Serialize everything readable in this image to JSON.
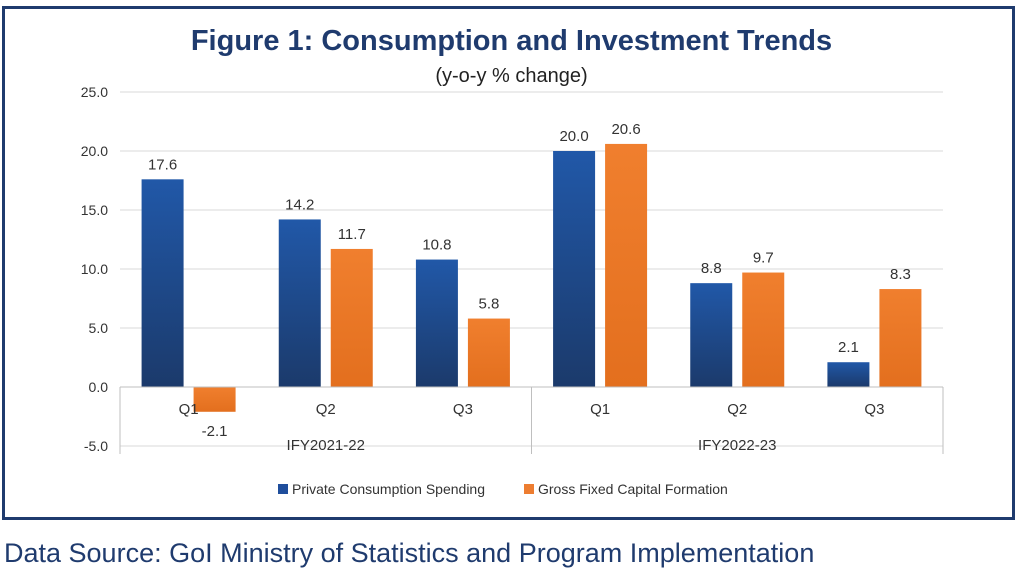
{
  "chart_data": {
    "type": "bar",
    "title": "Figure 1: Consumption and Investment Trends",
    "subtitle": "(y-o-y % change)",
    "groups": [
      {
        "label": "IFY2021-22",
        "categories": [
          "Q1",
          "Q2",
          "Q3"
        ]
      },
      {
        "label": "IFY2022-23",
        "categories": [
          "Q1",
          "Q2",
          "Q3"
        ]
      }
    ],
    "series": [
      {
        "name": "Private Consumption Spending",
        "color": "#1f4e9c",
        "values": [
          17.6,
          14.2,
          10.8,
          20.0,
          8.8,
          2.1
        ]
      },
      {
        "name": "Gross Fixed Capital Formation",
        "color": "#ed7d31",
        "values": [
          -2.1,
          11.7,
          5.8,
          20.6,
          9.7,
          8.3
        ]
      }
    ],
    "ylim": [
      -5,
      25
    ],
    "yticks": [
      "25.0",
      "20.0",
      "15.0",
      "10.0",
      "5.0",
      "0.0",
      "-5.0"
    ],
    "grid": true,
    "legend": "bottom"
  },
  "source": "Data Source:  GoI Ministry of Statistics and Program Implementation"
}
